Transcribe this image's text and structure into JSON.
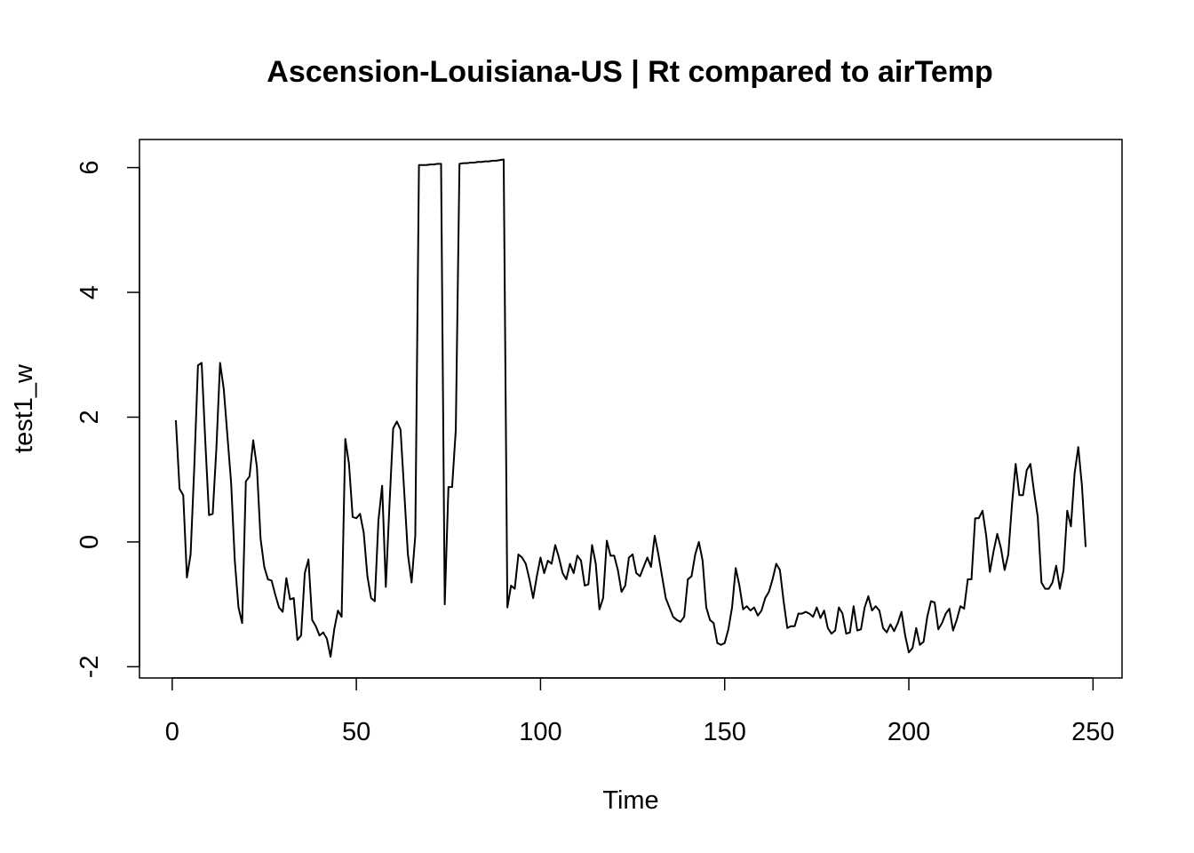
{
  "chart_data": {
    "type": "line",
    "title": "Ascension-Louisiana-US | Rt compared to airTemp",
    "x_label": "Time",
    "y_label": "test1_w",
    "x": [
      1,
      2,
      3,
      4,
      5,
      6,
      7,
      8,
      9,
      10,
      11,
      12,
      13,
      14,
      15,
      16,
      17,
      18,
      19,
      20,
      21,
      22,
      23,
      24,
      25,
      26,
      27,
      28,
      29,
      30,
      31,
      32,
      33,
      34,
      35,
      36,
      37,
      38,
      39,
      40,
      41,
      42,
      43,
      44,
      45,
      46,
      47,
      48,
      49,
      50,
      51,
      52,
      53,
      54,
      55,
      56,
      57,
      58,
      59,
      60,
      61,
      62,
      63,
      64,
      65,
      66,
      67,
      68,
      69,
      70,
      71,
      72,
      73,
      74,
      75,
      76,
      77,
      78,
      79,
      80,
      81,
      82,
      83,
      84,
      85,
      86,
      87,
      88,
      89,
      90,
      91,
      92,
      93,
      94,
      95,
      96,
      97,
      98,
      99,
      100,
      101,
      102,
      103,
      104,
      105,
      106,
      107,
      108,
      109,
      110,
      111,
      112,
      113,
      114,
      115,
      116,
      117,
      118,
      119,
      120,
      121,
      122,
      123,
      124,
      125,
      126,
      127,
      128,
      129,
      130,
      131,
      132,
      133,
      134,
      135,
      136,
      137,
      138,
      139,
      140,
      141,
      142,
      143,
      144,
      145,
      146,
      147,
      148,
      149,
      150,
      151,
      152,
      153,
      154,
      155,
      156,
      157,
      158,
      159,
      160,
      161,
      162,
      163,
      164,
      165,
      166,
      167,
      168,
      169,
      170,
      171,
      172,
      173,
      174,
      175,
      176,
      177,
      178,
      179,
      180,
      181,
      182,
      183,
      184,
      185,
      186,
      187,
      188,
      189,
      190,
      191,
      192,
      193,
      194,
      195,
      196,
      197,
      198,
      199,
      200,
      201,
      202,
      203,
      204,
      205,
      206,
      207,
      208,
      209,
      210,
      211,
      212,
      213,
      214,
      215,
      216,
      217,
      218,
      219,
      220,
      221,
      222,
      223,
      224,
      225,
      226,
      227,
      228,
      229,
      230,
      231,
      232,
      233,
      234,
      235,
      236,
      237,
      238,
      239,
      240,
      241,
      242,
      243,
      244,
      245,
      246,
      247,
      248
    ],
    "series": [
      {
        "name": "test1_w",
        "color": "#000000",
        "values": [
          1.95,
          0.85,
          0.75,
          -0.57,
          -0.2,
          1.2,
          2.83,
          2.87,
          1.6,
          0.43,
          0.45,
          1.5,
          2.87,
          2.45,
          1.7,
          0.95,
          -0.3,
          -1.05,
          -1.3,
          0.97,
          1.05,
          1.63,
          1.2,
          0.05,
          -0.4,
          -0.6,
          -0.62,
          -0.85,
          -1.05,
          -1.12,
          -0.58,
          -0.92,
          -0.9,
          -1.57,
          -1.5,
          -0.5,
          -0.28,
          -1.25,
          -1.35,
          -1.5,
          -1.45,
          -1.55,
          -1.84,
          -1.4,
          -1.1,
          -1.2,
          1.65,
          1.25,
          0.4,
          0.38,
          0.45,
          0.15,
          -0.55,
          -0.9,
          -0.95,
          0.35,
          0.9,
          -0.72,
          0.6,
          1.82,
          1.93,
          1.8,
          0.8,
          -0.2,
          -0.65,
          0.1,
          6.04,
          6.04,
          6.04,
          6.05,
          6.05,
          6.06,
          6.06,
          -1.0,
          0.88,
          0.88,
          1.8,
          6.06,
          6.07,
          6.07,
          6.08,
          6.08,
          6.09,
          6.09,
          6.1,
          6.1,
          6.11,
          6.11,
          6.12,
          6.13,
          -1.05,
          -0.7,
          -0.75,
          -0.2,
          -0.25,
          -0.35,
          -0.6,
          -0.9,
          -0.55,
          -0.25,
          -0.5,
          -0.3,
          -0.35,
          -0.05,
          -0.25,
          -0.5,
          -0.6,
          -0.35,
          -0.5,
          -0.22,
          -0.3,
          -0.7,
          -0.68,
          -0.05,
          -0.35,
          -1.08,
          -0.9,
          0.02,
          -0.22,
          -0.22,
          -0.45,
          -0.8,
          -0.7,
          -0.25,
          -0.2,
          -0.5,
          -0.55,
          -0.4,
          -0.25,
          -0.4,
          0.1,
          -0.2,
          -0.55,
          -0.9,
          -1.05,
          -1.2,
          -1.25,
          -1.28,
          -1.2,
          -0.6,
          -0.55,
          -0.2,
          0.0,
          -0.3,
          -1.05,
          -1.25,
          -1.3,
          -1.62,
          -1.65,
          -1.62,
          -1.4,
          -1.05,
          -0.42,
          -0.7,
          -1.08,
          -1.03,
          -1.1,
          -1.05,
          -1.18,
          -1.1,
          -0.9,
          -0.8,
          -0.6,
          -0.35,
          -0.45,
          -0.95,
          -1.38,
          -1.35,
          -1.35,
          -1.15,
          -1.15,
          -1.12,
          -1.15,
          -1.2,
          -1.05,
          -1.22,
          -1.1,
          -1.38,
          -1.47,
          -1.42,
          -1.05,
          -1.15,
          -1.47,
          -1.45,
          -1.03,
          -1.42,
          -1.4,
          -1.05,
          -0.87,
          -1.1,
          -1.03,
          -1.1,
          -1.38,
          -1.45,
          -1.32,
          -1.43,
          -1.3,
          -1.12,
          -1.5,
          -1.77,
          -1.7,
          -1.38,
          -1.65,
          -1.6,
          -1.2,
          -0.95,
          -0.97,
          -1.4,
          -1.3,
          -1.15,
          -1.07,
          -1.42,
          -1.25,
          -1.03,
          -1.07,
          -0.6,
          -0.6,
          0.38,
          0.38,
          0.5,
          0.1,
          -0.48,
          -0.15,
          0.13,
          -0.1,
          -0.45,
          -0.2,
          0.6,
          1.25,
          0.75,
          0.75,
          1.15,
          1.25,
          0.8,
          0.4,
          -0.65,
          -0.75,
          -0.75,
          -0.65,
          -0.38,
          -0.75,
          -0.45,
          0.5,
          0.25,
          1.1,
          1.52,
          0.9,
          -0.08
        ]
      }
    ],
    "xlim": [
      -8.88,
      257.88
    ],
    "xticks": [
      0,
      50,
      100,
      150,
      200,
      250
    ],
    "ylim": [
      -2.18,
      6.45
    ],
    "yticks": [
      -2,
      0,
      2,
      4,
      6
    ]
  }
}
